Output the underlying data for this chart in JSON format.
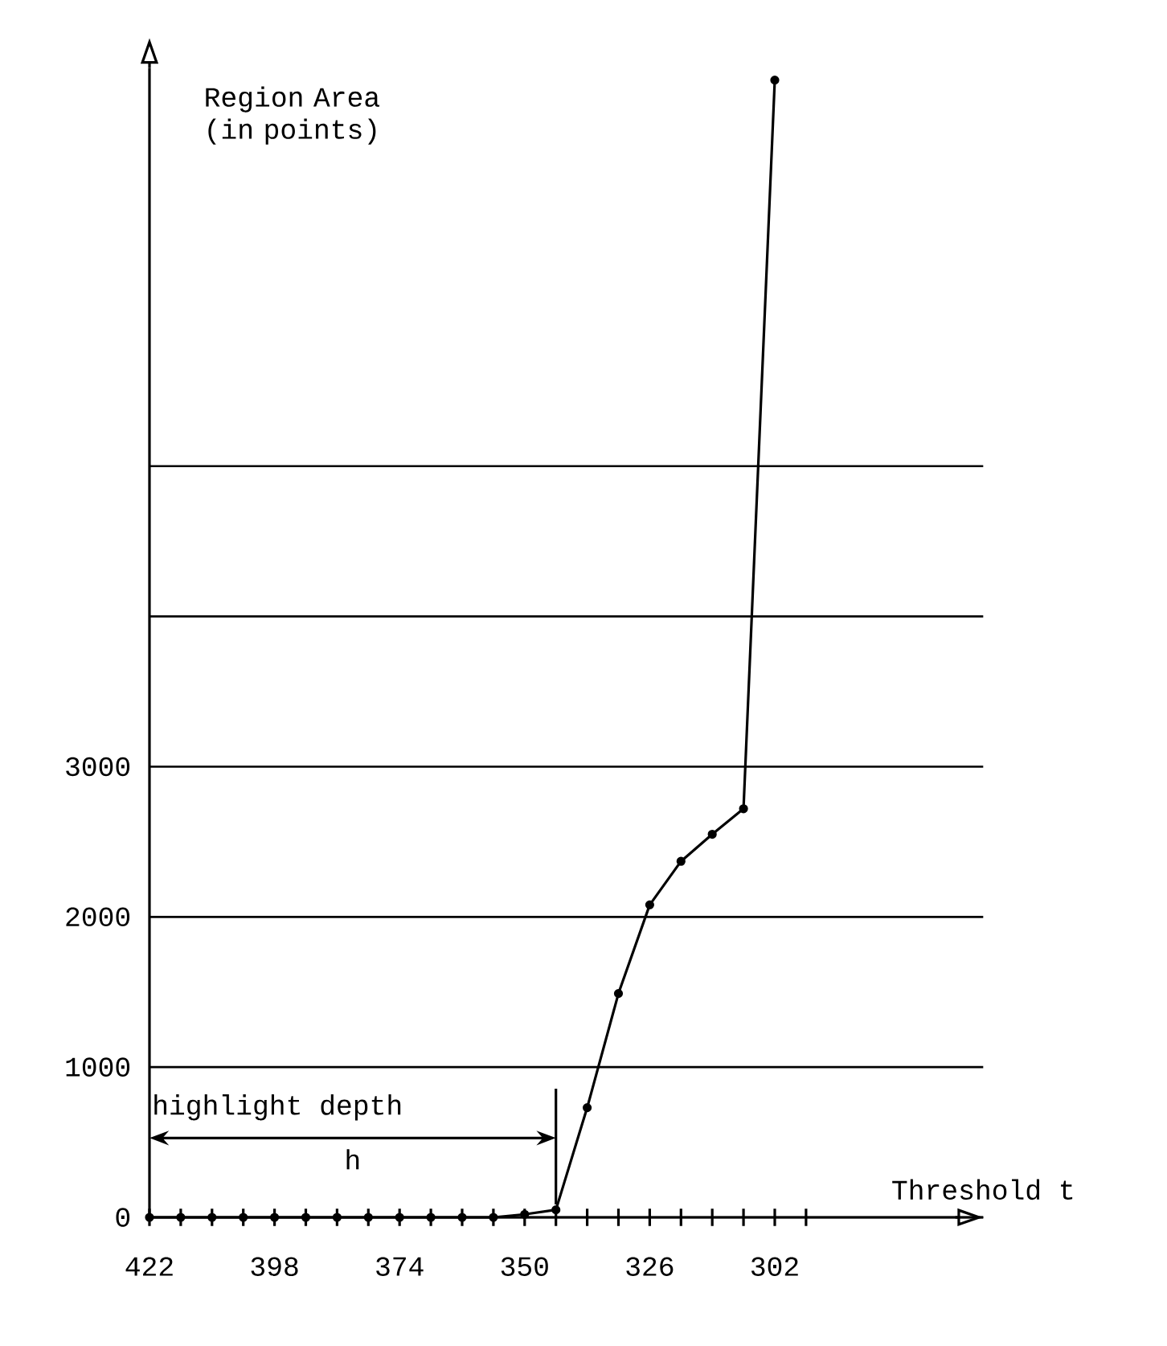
{
  "chart_data": {
    "type": "line",
    "xlabel": "Threshold t",
    "ylabel": "Region Area (in points)",
    "x": [
      422,
      416,
      410,
      404,
      398,
      392,
      386,
      380,
      374,
      368,
      362,
      356,
      350,
      344,
      338,
      332,
      326,
      320,
      314,
      308,
      302
    ],
    "values": [
      0,
      0,
      0,
      0,
      0,
      0,
      0,
      0,
      0,
      0,
      0,
      0,
      20,
      50,
      730,
      1490,
      2080,
      2370,
      2550,
      2720,
      7570
    ],
    "color": "#000000",
    "marker": "circle",
    "line_style": "solid",
    "xlim": [
      422,
      262
    ],
    "ylim": [
      0,
      7650
    ],
    "xticks": [
      422,
      {
        "value": 416,
        "label": null
      },
      {
        "value": 410,
        "label": null
      },
      {
        "value": 404,
        "label": null
      },
      398,
      {
        "value": 392,
        "label": null
      },
      {
        "value": 386,
        "label": null
      },
      {
        "value": 380,
        "label": null
      },
      374,
      {
        "value": 368,
        "label": null
      },
      {
        "value": 362,
        "label": null
      },
      {
        "value": 356,
        "label": null
      },
      350,
      {
        "value": 344,
        "label": null
      },
      {
        "value": 338,
        "label": null
      },
      {
        "value": 332,
        "label": null
      },
      326,
      {
        "value": 320,
        "label": null
      },
      {
        "value": 314,
        "label": null
      },
      {
        "value": 308,
        "label": null
      },
      302,
      {
        "value": 296,
        "label": null
      }
    ],
    "yticks": [
      0,
      1000,
      2000,
      3000,
      {
        "value": 4000,
        "label": null
      },
      {
        "value": 5000,
        "label": null
      }
    ],
    "grid": "y",
    "ref_lines": [
      {
        "axis": "x",
        "value": 344,
        "label": "h"
      }
    ],
    "annotations": [
      "highlight depth"
    ]
  }
}
